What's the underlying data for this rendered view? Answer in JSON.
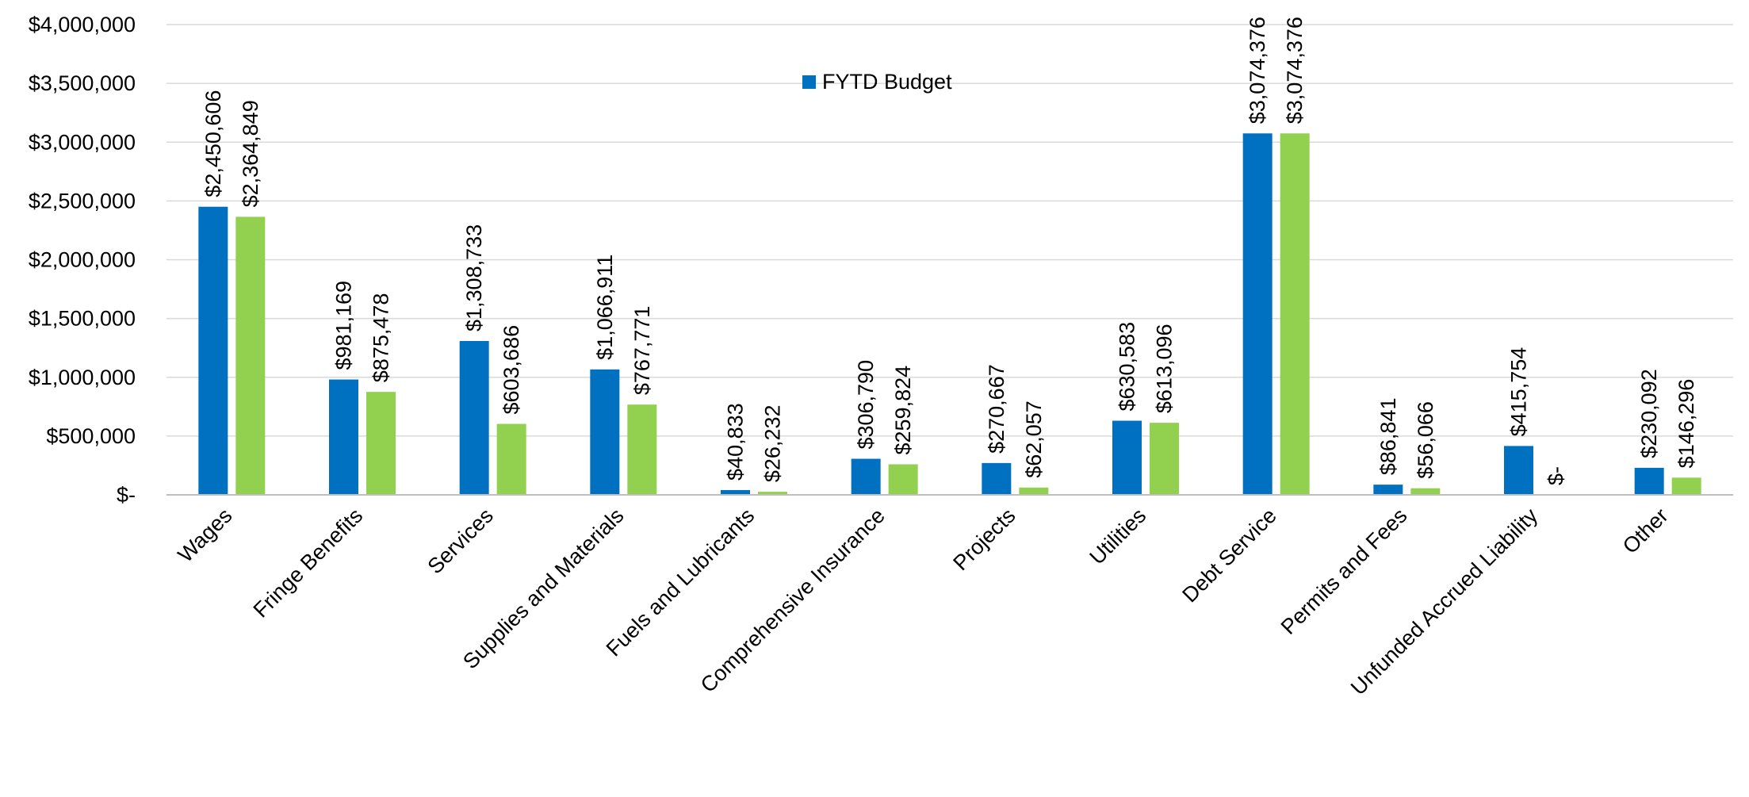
{
  "chart_data": {
    "type": "bar",
    "title": "",
    "xlabel": "",
    "ylabel": "",
    "categories": [
      "Wages",
      "Fringe Benefits",
      "Services",
      "Supplies and Materials",
      "Fuels and Lubricants",
      "Comprehensive Insurance",
      "Projects",
      "Utilities",
      "Debt Service",
      "Permits and Fees",
      "Unfunded Accrued Liability",
      "Other"
    ],
    "series": [
      {
        "name": "FYTD Budget",
        "color": "#0070C0",
        "values": [
          2450606,
          981169,
          1308733,
          1066911,
          40833,
          306790,
          270667,
          630583,
          3074376,
          86841,
          415754,
          230092
        ],
        "labels": [
          "$2,450,606",
          "$981,169",
          "$1,308,733",
          "$1,066,911",
          "$40,833",
          "$306,790",
          "$270,667",
          "$630,583",
          "$3,074,376",
          "$86,841",
          "$415,754",
          "$230,092"
        ]
      },
      {
        "color": "#92D050",
        "values": [
          2364849,
          875478,
          603686,
          767771,
          26232,
          259824,
          62057,
          613096,
          3074376,
          56066,
          0,
          146296
        ],
        "labels": [
          "$2,364,849",
          "$875,478",
          "$603,686",
          "$767,771",
          "$26,232",
          "$259,824",
          "$62,057",
          "$613,096",
          "$3,074,376",
          "$56,066",
          "$-",
          "$146,296"
        ]
      }
    ],
    "ylim": [
      0,
      4000000
    ],
    "y_ticks": [
      {
        "value": 0,
        "label": "$-"
      },
      {
        "value": 500000,
        "label": "$500,000"
      },
      {
        "value": 1000000,
        "label": "$1,000,000"
      },
      {
        "value": 1500000,
        "label": "$1,500,000"
      },
      {
        "value": 2000000,
        "label": "$2,000,000"
      },
      {
        "value": 2500000,
        "label": "$2,500,000"
      },
      {
        "value": 3000000,
        "label": "$3,000,000"
      },
      {
        "value": 3500000,
        "label": "$3,500,000"
      },
      {
        "value": 4000000,
        "label": "$4,000,000"
      }
    ],
    "grid": true,
    "legend_position": "top-center",
    "colors": {
      "gridline": "#D9D9D9",
      "axis": "#BFBFBF"
    }
  }
}
